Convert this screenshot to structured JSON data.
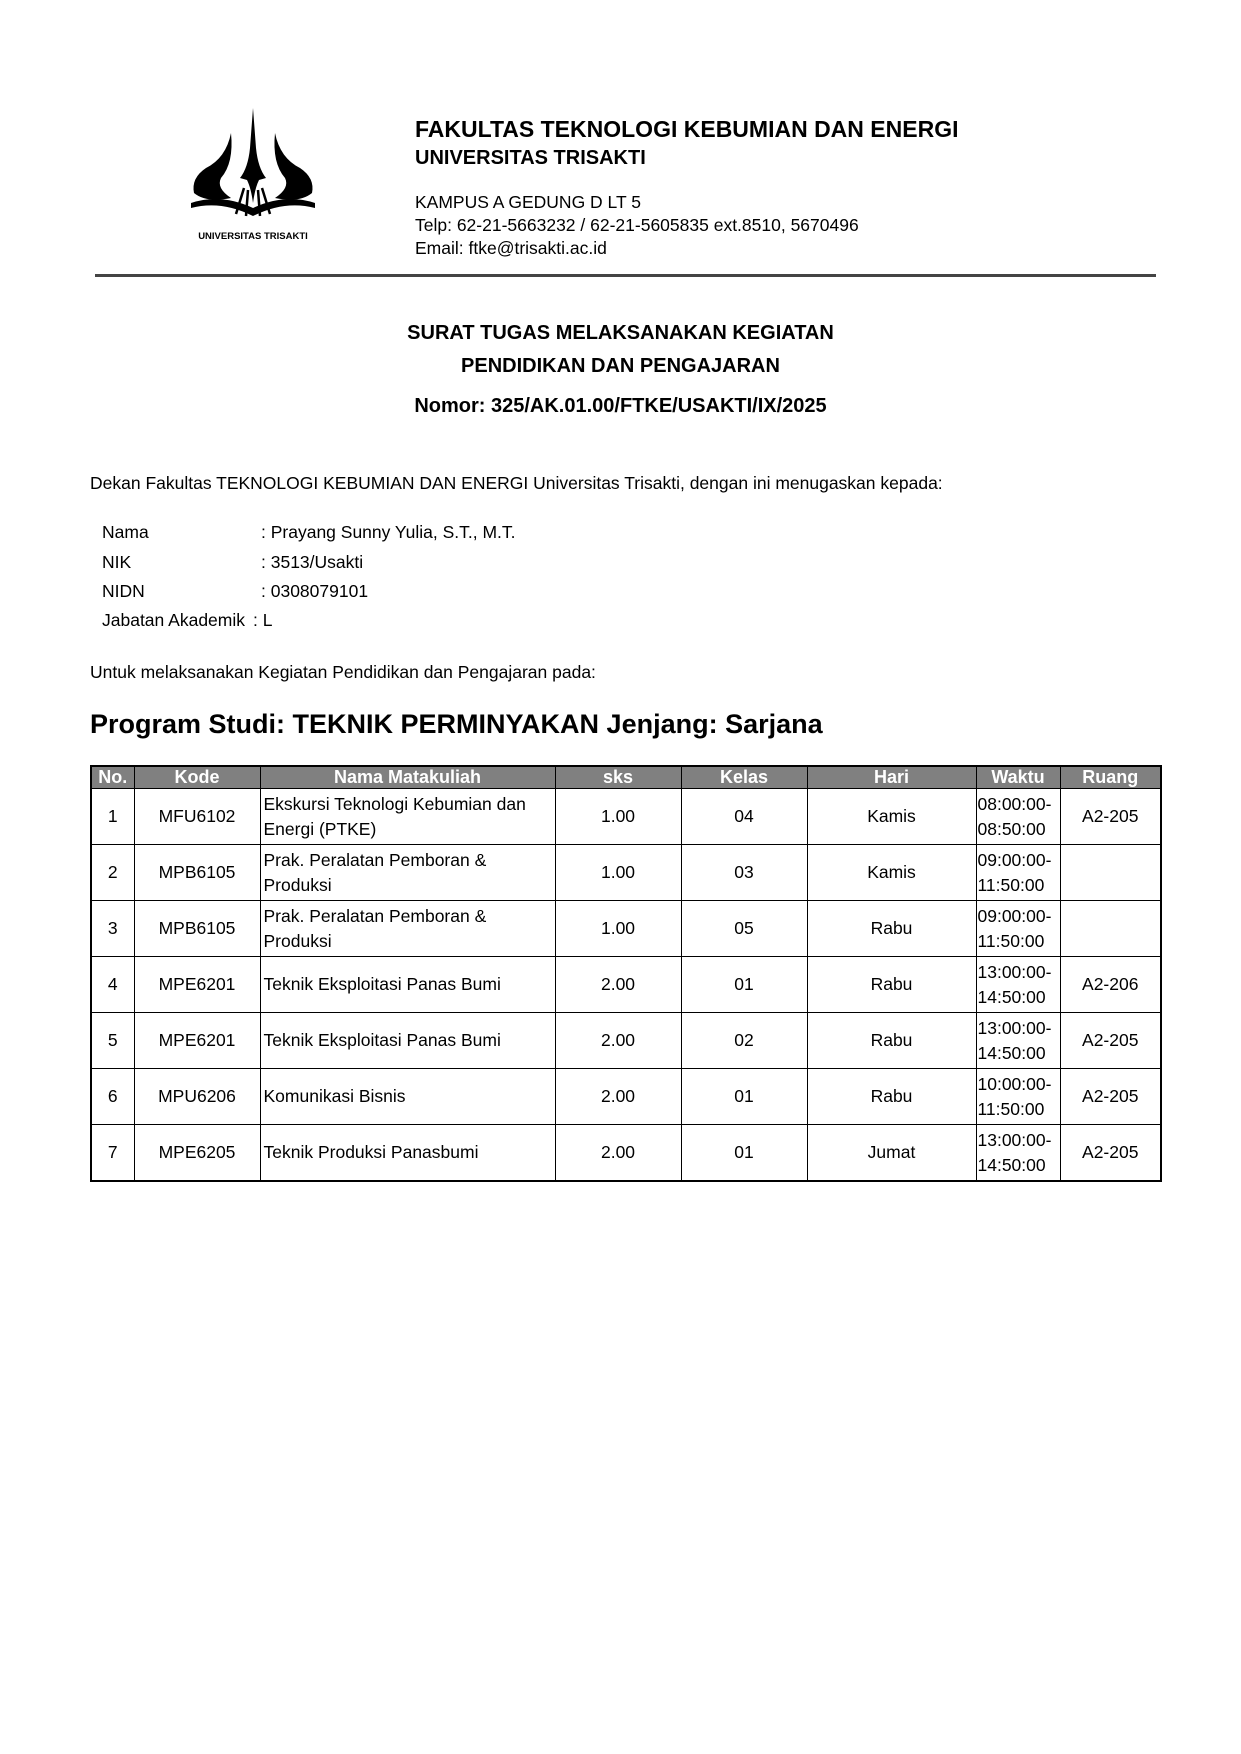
{
  "header": {
    "logo_text": "UNIVERSITAS TRISAKTI",
    "faculty": "FAKULTAS TEKNOLOGI KEBUMIAN DAN ENERGI",
    "university": "UNIVERSITAS TRISAKTI",
    "address": "KAMPUS A GEDUNG D LT 5",
    "phone": "Telp: 62-21-5663232 / 62-21-5605835 ext.8510, 5670496",
    "email": "Email: ftke@trisakti.ac.id"
  },
  "letter": {
    "title_line1": "SURAT TUGAS MELAKSANAKAN KEGIATAN",
    "title_line2": "PENDIDIKAN DAN PENGAJARAN",
    "number": "Nomor: 325/AK.01.00/FTKE/USAKTI/IX/2025",
    "intro": "Dekan Fakultas TEKNOLOGI KEBUMIAN DAN ENERGI Universitas Trisakti, dengan ini menugaskan kepada:",
    "fields": [
      {
        "label": "Nama",
        "value": ": Prayang Sunny Yulia, S.T., M.T."
      },
      {
        "label": "NIK",
        "value": ": 3513/Usakti"
      },
      {
        "label": "NIDN",
        "value": ": 0308079101"
      },
      {
        "label": "Jabatan Akademik",
        "value": ": L"
      }
    ],
    "purpose": "Untuk melaksanakan Kegiatan Pendidikan dan Pengajaran pada:",
    "program": "Program Studi: TEKNIK PERMINYAKAN Jenjang: Sarjana"
  },
  "table": {
    "header_color": "#808080",
    "columns": [
      "No.",
      "Kode",
      "Nama Matakuliah",
      "sks",
      "Kelas",
      "Hari",
      "Waktu",
      "Ruang"
    ],
    "rows": [
      {
        "no": "1",
        "kode": "MFU6102",
        "nama": "Ekskursi Teknologi Kebumian dan Energi (PTKE)",
        "sks": "1.00",
        "kelas": "04",
        "hari": "Kamis",
        "waktu_start": "08:00:00-",
        "waktu_end": "08:50:00",
        "ruang": "A2-205"
      },
      {
        "no": "2",
        "kode": "MPB6105",
        "nama": "Prak. Peralatan Pemboran & Produksi",
        "sks": "1.00",
        "kelas": "03",
        "hari": "Kamis",
        "waktu_start": "09:00:00-",
        "waktu_end": "11:50:00",
        "ruang": ""
      },
      {
        "no": "3",
        "kode": "MPB6105",
        "nama": "Prak. Peralatan Pemboran & Produksi",
        "sks": "1.00",
        "kelas": "05",
        "hari": "Rabu",
        "waktu_start": "09:00:00-",
        "waktu_end": "11:50:00",
        "ruang": ""
      },
      {
        "no": "4",
        "kode": "MPE6201",
        "nama": "Teknik Eksploitasi Panas Bumi",
        "sks": "2.00",
        "kelas": "01",
        "hari": "Rabu",
        "waktu_start": "13:00:00-",
        "waktu_end": "14:50:00",
        "ruang": "A2-206"
      },
      {
        "no": "5",
        "kode": "MPE6201",
        "nama": "Teknik Eksploitasi Panas Bumi",
        "sks": "2.00",
        "kelas": "02",
        "hari": "Rabu",
        "waktu_start": "13:00:00-",
        "waktu_end": "14:50:00",
        "ruang": "A2-205"
      },
      {
        "no": "6",
        "kode": "MPU6206",
        "nama": "Komunikasi Bisnis",
        "sks": "2.00",
        "kelas": "01",
        "hari": "Rabu",
        "waktu_start": "10:00:00-",
        "waktu_end": "11:50:00",
        "ruang": "A2-205"
      },
      {
        "no": "7",
        "kode": "MPE6205",
        "nama": "Teknik Produksi Panasbumi",
        "sks": "2.00",
        "kelas": "01",
        "hari": "Jumat",
        "waktu_start": "13:00:00-",
        "waktu_end": "14:50:00",
        "ruang": "A2-205"
      }
    ]
  }
}
